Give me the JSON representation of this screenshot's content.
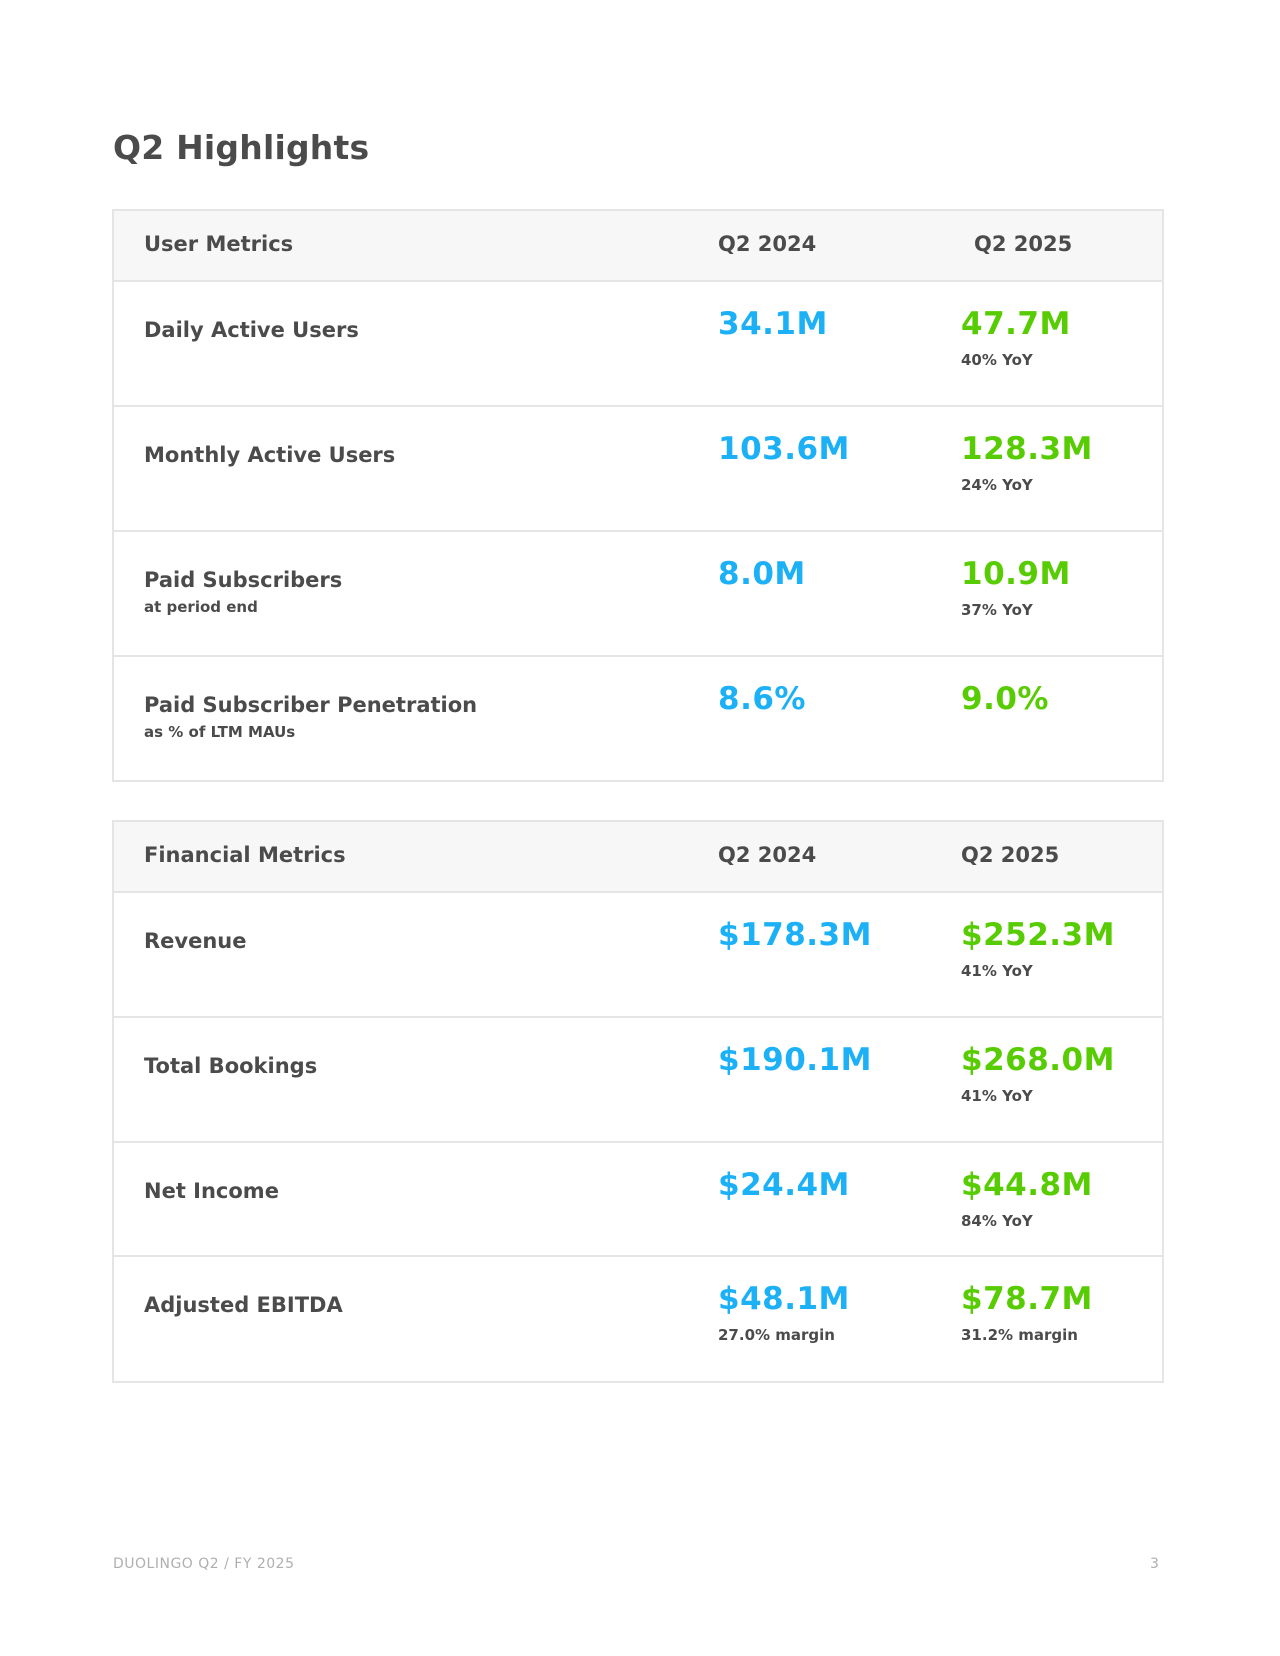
{
  "page_title": "Q2 Highlights",
  "user_metrics": {
    "header": {
      "label": "User Metrics",
      "col1": "Q2 2024",
      "col2": "Q2 2025"
    },
    "rows": [
      {
        "name": "Daily Active Users",
        "sub": "",
        "v2024": "34.1M",
        "v2024_sub": "",
        "v2025": "47.7M",
        "v2025_sub": "40% YoY"
      },
      {
        "name": "Monthly Active Users",
        "sub": "",
        "v2024": "103.6M",
        "v2024_sub": "",
        "v2025": "128.3M",
        "v2025_sub": "24% YoY"
      },
      {
        "name": "Paid Subscribers",
        "sub": "at period end",
        "v2024": "8.0M",
        "v2024_sub": "",
        "v2025": "10.9M",
        "v2025_sub": "37% YoY"
      },
      {
        "name": "Paid Subscriber Penetration",
        "sub": "as % of LTM MAUs",
        "v2024": "8.6%",
        "v2024_sub": "",
        "v2025": "9.0%",
        "v2025_sub": ""
      }
    ]
  },
  "financial_metrics": {
    "header": {
      "label": "Financial Metrics",
      "col1": "Q2 2024",
      "col2": "Q2 2025"
    },
    "rows": [
      {
        "name": "Revenue",
        "sub": "",
        "v2024": "$178.3M",
        "v2024_sub": "",
        "v2025": "$252.3M",
        "v2025_sub": "41% YoY"
      },
      {
        "name": "Total Bookings",
        "sub": "",
        "v2024": "$190.1M",
        "v2024_sub": "",
        "v2025": "$268.0M",
        "v2025_sub": "41% YoY"
      },
      {
        "name": "Net Income",
        "sub": "",
        "v2024": "$24.4M",
        "v2024_sub": "",
        "v2025": "$44.8M",
        "v2025_sub": "84% YoY"
      },
      {
        "name": "Adjusted EBITDA",
        "sub": "",
        "v2024": "$48.1M",
        "v2024_sub": "27.0% margin",
        "v2025": "$78.7M",
        "v2025_sub": "31.2% margin"
      }
    ]
  },
  "footer": {
    "left": "DUOLINGO Q2 / FY 2025",
    "page_number": "3"
  },
  "colors": {
    "prior_year": "#1cb0f6",
    "current_year": "#58cc02",
    "text": "#4b4b4b",
    "border": "#e5e5e5",
    "header_bg": "#f7f7f7"
  }
}
